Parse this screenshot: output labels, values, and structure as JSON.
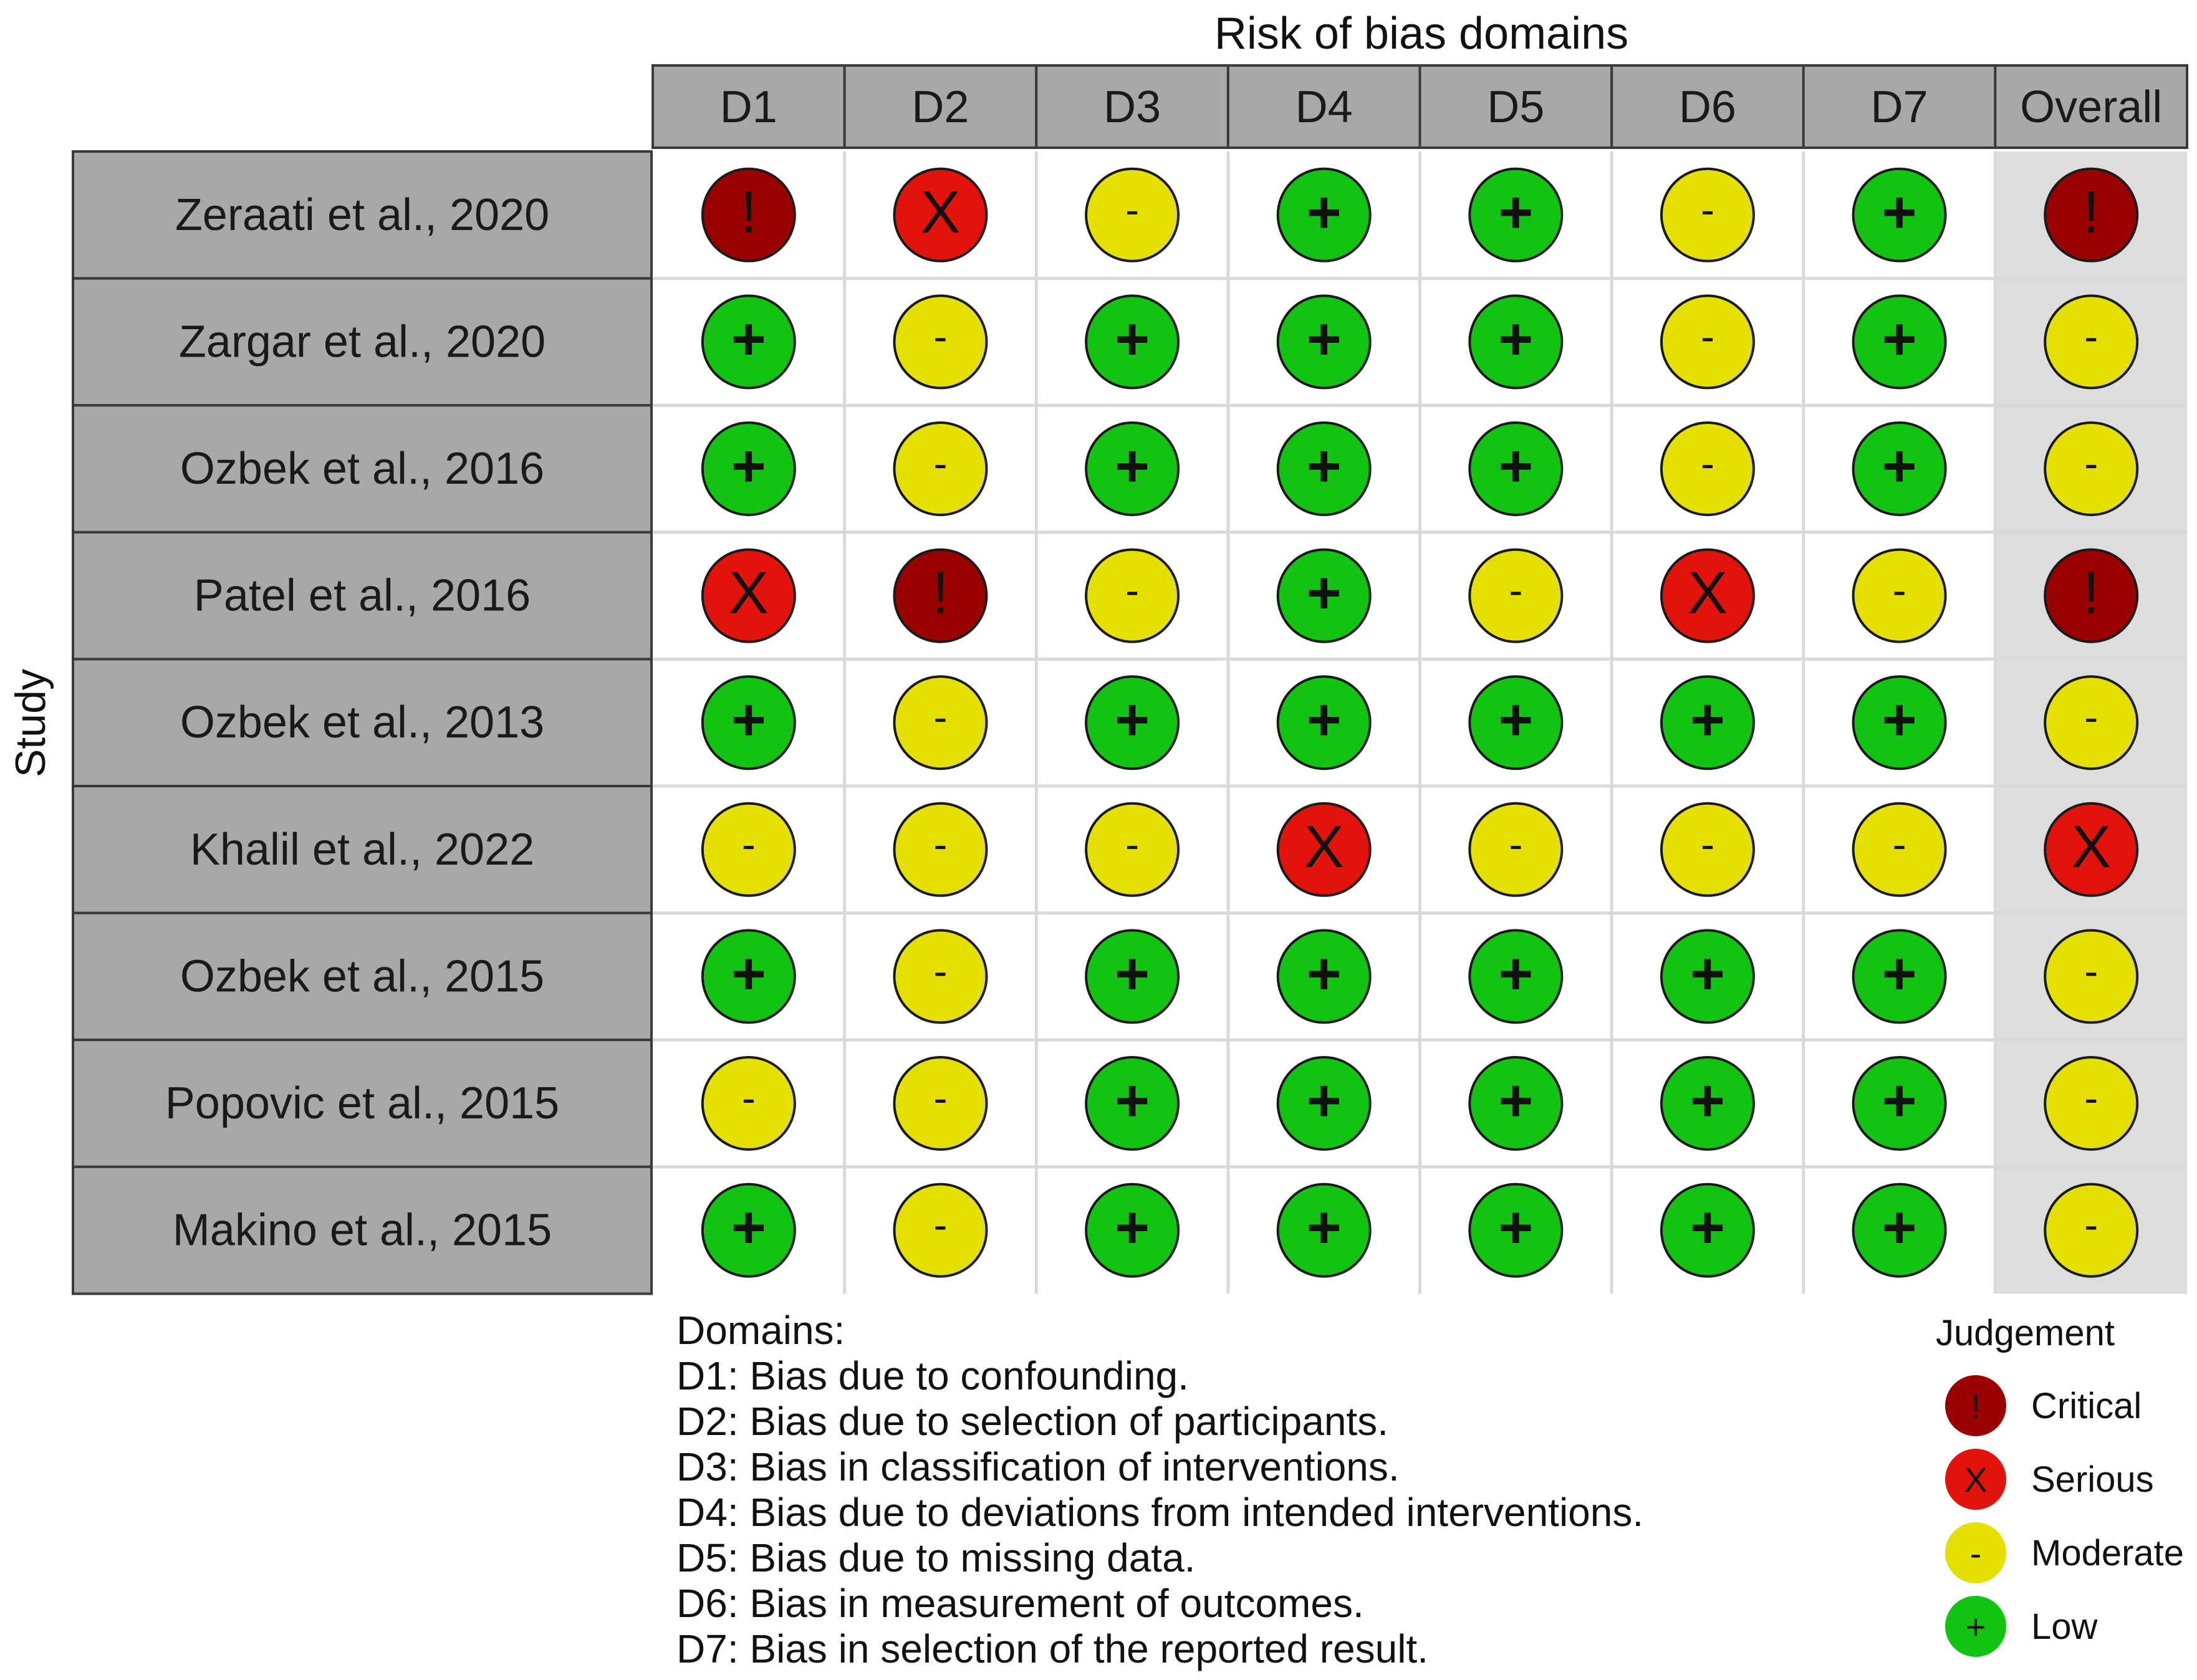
{
  "header": {
    "title": "Risk of bias domains"
  },
  "axis": {
    "ylabel": "Study"
  },
  "columns": [
    "D1",
    "D2",
    "D3",
    "D4",
    "D5",
    "D6",
    "D7",
    "Overall"
  ],
  "studies": [
    {
      "label": "Zeraati et al., 2020",
      "judgements": [
        "critical",
        "serious",
        "moderate",
        "low",
        "low",
        "moderate",
        "low",
        "critical"
      ]
    },
    {
      "label": "Zargar et al., 2020",
      "judgements": [
        "low",
        "moderate",
        "low",
        "low",
        "low",
        "moderate",
        "low",
        "moderate"
      ]
    },
    {
      "label": "Ozbek et al., 2016",
      "judgements": [
        "low",
        "moderate",
        "low",
        "low",
        "low",
        "moderate",
        "low",
        "moderate"
      ]
    },
    {
      "label": "Patel et al., 2016",
      "judgements": [
        "serious",
        "critical",
        "moderate",
        "low",
        "moderate",
        "serious",
        "moderate",
        "critical"
      ]
    },
    {
      "label": "Ozbek et al., 2013",
      "judgements": [
        "low",
        "moderate",
        "low",
        "low",
        "low",
        "low",
        "low",
        "moderate"
      ]
    },
    {
      "label": "Khalil et al., 2022",
      "judgements": [
        "moderate",
        "moderate",
        "moderate",
        "serious",
        "moderate",
        "moderate",
        "moderate",
        "serious"
      ]
    },
    {
      "label": "Ozbek et al., 2015",
      "judgements": [
        "low",
        "moderate",
        "low",
        "low",
        "low",
        "low",
        "low",
        "moderate"
      ]
    },
    {
      "label": "Popovic et al., 2015",
      "judgements": [
        "moderate",
        "moderate",
        "low",
        "low",
        "low",
        "low",
        "low",
        "moderate"
      ]
    },
    {
      "label": "Makino et al., 2015",
      "judgements": [
        "low",
        "moderate",
        "low",
        "low",
        "low",
        "low",
        "low",
        "moderate"
      ]
    }
  ],
  "judgement_styles": {
    "critical": {
      "symbol": "!",
      "color": "#9b0000"
    },
    "serious": {
      "symbol": "X",
      "color": "#e3120b"
    },
    "moderate": {
      "symbol": "-",
      "color": "#e6e000"
    },
    "low": {
      "symbol": "+",
      "color": "#11c411"
    }
  },
  "domains": {
    "heading": "Domains:",
    "items": [
      "D1: Bias due to confounding.",
      "D2: Bias due to selection of participants.",
      "D3: Bias in classification of interventions.",
      "D4: Bias due to deviations from intended interventions.",
      "D5: Bias due to missing data.",
      "D6: Bias in measurement of outcomes.",
      "D7: Bias in selection of the reported result."
    ]
  },
  "legend": {
    "title": "Judgement",
    "items": [
      {
        "key": "critical",
        "label": "Critical"
      },
      {
        "key": "serious",
        "label": "Serious"
      },
      {
        "key": "moderate",
        "label": "Moderate"
      },
      {
        "key": "low",
        "label": "Low"
      }
    ]
  },
  "colors": {
    "header_fill": "#a8a8a8",
    "study_fill": "#a8a8a8",
    "overall_fill": "#dddddd",
    "grid_line": "#d9d9d9",
    "border": "#3a3a3a"
  }
}
